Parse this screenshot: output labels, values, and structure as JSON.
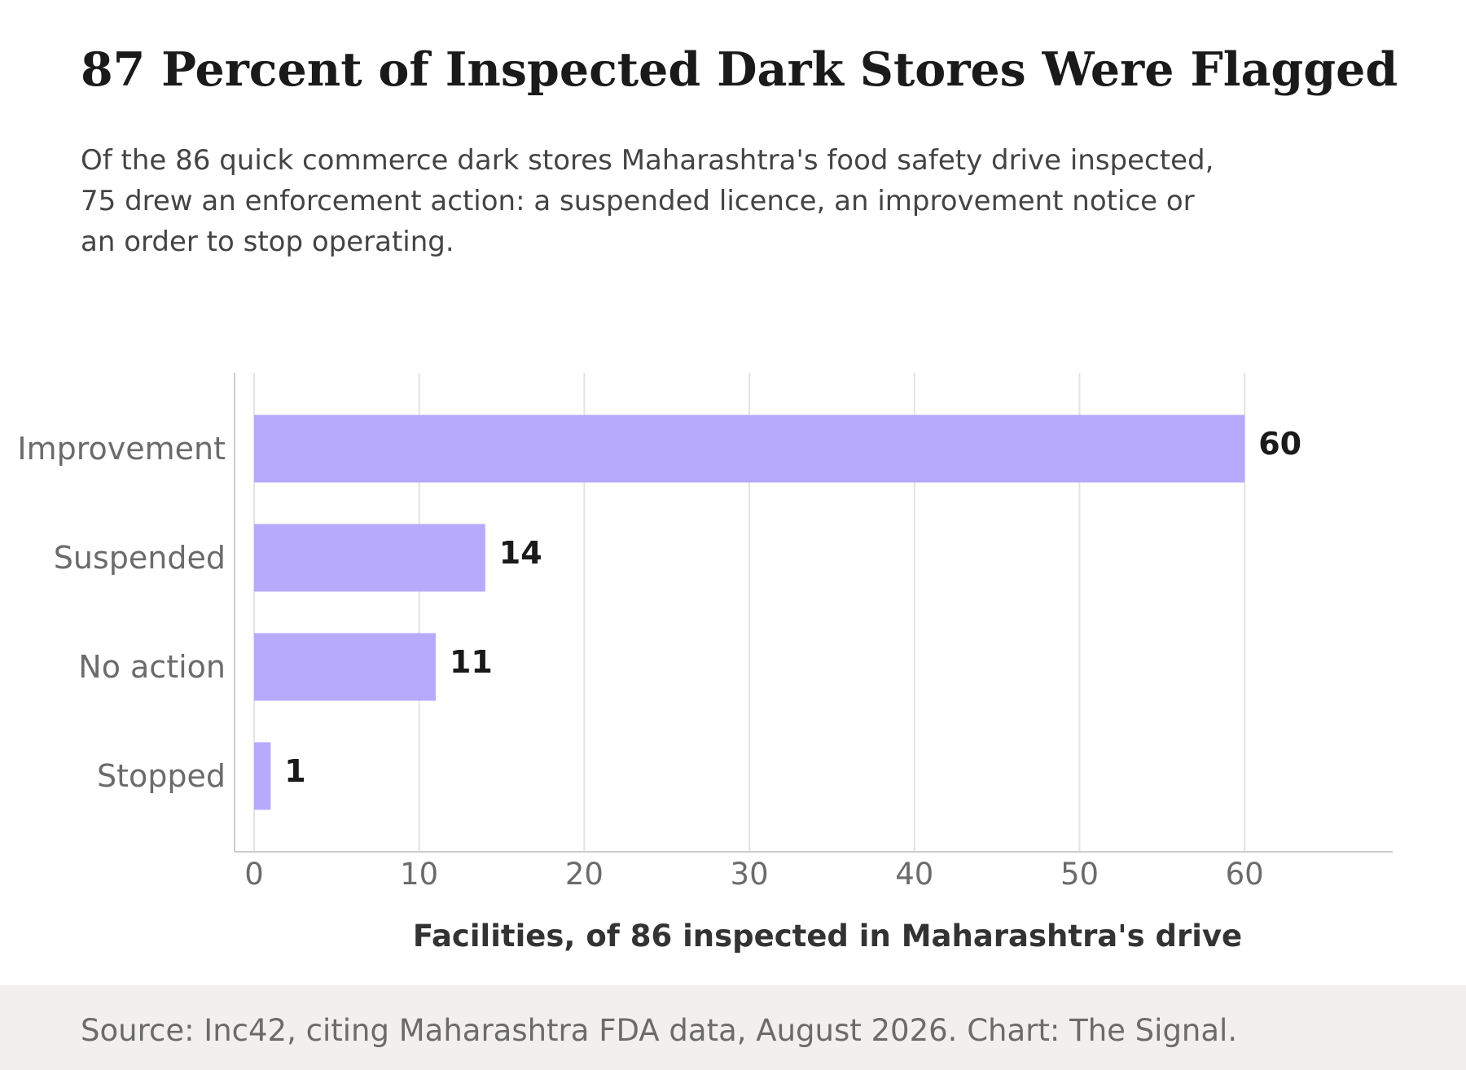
{
  "header": {
    "title": "87 Percent of Inspected Dark Stores Were Flagged",
    "subtitle": "Of the 86 quick commerce dark stores Maharashtra's food safety drive inspected, 75 drew an enforcement action: a suspended licence, an improvement notice or an order to stop operating."
  },
  "footer": {
    "source": "Source: Inc42, citing Maharashtra FDA data, August 2026. Chart: The Signal."
  },
  "colors": {
    "bar": "#b7a9fc",
    "gridline": "#e3e3e3",
    "axis": "#cccccc",
    "footer_background": "#f1f0ee"
  },
  "chart_data": {
    "type": "bar",
    "orientation": "horizontal",
    "categories": [
      "Improvement",
      "Suspended",
      "No action",
      "Stopped"
    ],
    "values": [
      60,
      14,
      11,
      1
    ],
    "xlabel": "Facilities, of 86 inspected in Maharashtra's drive",
    "ylabel": "",
    "xlim": [
      0,
      69
    ],
    "xticks": [
      0,
      10,
      20,
      30,
      40,
      50,
      60
    ],
    "grid": "vertical",
    "data_labels": true,
    "legend": "none"
  }
}
